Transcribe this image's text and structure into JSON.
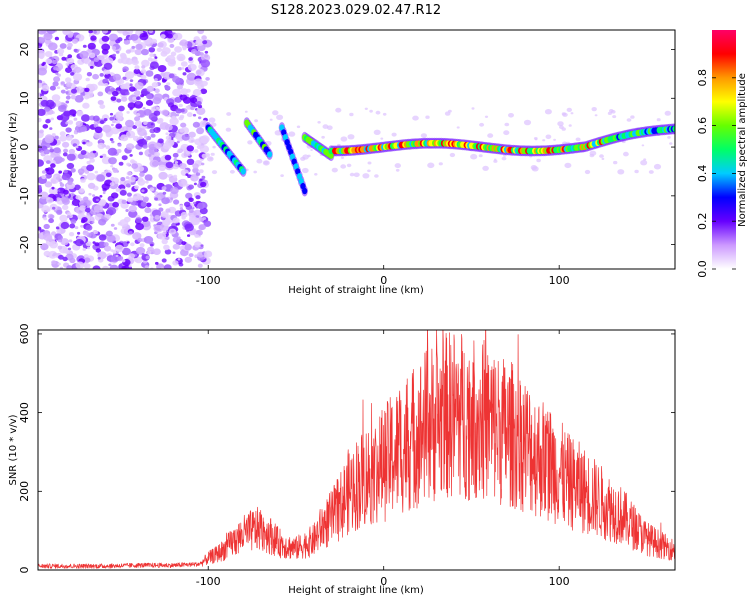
{
  "title": "S128.2023.029.02.47.R12",
  "spectrogram": {
    "xlabel": "Height of straight line (km)",
    "ylabel": "Frequency (Hz)",
    "xlim": [
      -197,
      166
    ],
    "ylim": [
      -25,
      24
    ],
    "x_ticks": [
      "-100",
      "0",
      "100"
    ],
    "x_tick_values": [
      -100,
      0,
      100
    ],
    "y_ticks": [
      "20",
      "10",
      "0",
      "-10",
      "-20"
    ],
    "y_tick_values": [
      20,
      10,
      0,
      -10,
      -20
    ],
    "noise_region_x": [
      -197,
      -100
    ],
    "colorbar": {
      "label": "Normalized spectral amplitude",
      "ticks": [
        "0.0",
        "0.2",
        "0.4",
        "0.6",
        "0.8"
      ],
      "tick_values": [
        0.0,
        0.2,
        0.4,
        0.6,
        0.8
      ],
      "range": [
        0,
        1
      ],
      "colors": [
        "#ffffff",
        "#cc99ff",
        "#6600ff",
        "#0000ff",
        "#00ccff",
        "#00ff66",
        "#66ff00",
        "#ffff00",
        "#ff9900",
        "#ff0000",
        "#ff0066"
      ]
    }
  },
  "chart_data": {
    "type": "line",
    "xlabel": "Height of straight line (km)",
    "ylabel": "SNR (10 * v/v)",
    "xlim": [
      -197,
      166
    ],
    "ylim": [
      0,
      610
    ],
    "x_ticks": [
      "-100",
      "0",
      "100"
    ],
    "x_tick_values": [
      -100,
      0,
      100
    ],
    "y_ticks": [
      "600",
      "400",
      "200",
      "0"
    ],
    "y_tick_values": [
      600,
      400,
      200,
      0
    ],
    "color": "#ee3333",
    "series": [
      {
        "x": [
          -197,
          -180,
          -160,
          -140,
          -120,
          -105,
          -100,
          -95,
          -90,
          -85,
          -80,
          -75,
          -70,
          -65,
          -60,
          -55,
          -50,
          -45,
          -40,
          -35,
          -30,
          -25,
          -20,
          -15,
          -10,
          -5,
          0,
          5,
          10,
          15,
          20,
          25,
          30,
          35,
          40,
          45,
          50,
          55,
          60,
          65,
          70,
          75,
          80,
          85,
          90,
          95,
          100,
          105,
          110,
          115,
          120,
          125,
          130,
          135,
          140,
          145,
          150,
          155,
          160,
          166
        ],
        "y": [
          10,
          10,
          10,
          12,
          12,
          15,
          30,
          40,
          55,
          75,
          90,
          100,
          105,
          90,
          70,
          60,
          55,
          65,
          75,
          110,
          130,
          160,
          200,
          220,
          240,
          250,
          270,
          290,
          310,
          330,
          350,
          370,
          380,
          390,
          400,
          395,
          390,
          385,
          375,
          360,
          350,
          340,
          325,
          300,
          285,
          270,
          250,
          225,
          215,
          200,
          185,
          170,
          155,
          140,
          120,
          100,
          80,
          70,
          60,
          50
        ]
      }
    ]
  }
}
